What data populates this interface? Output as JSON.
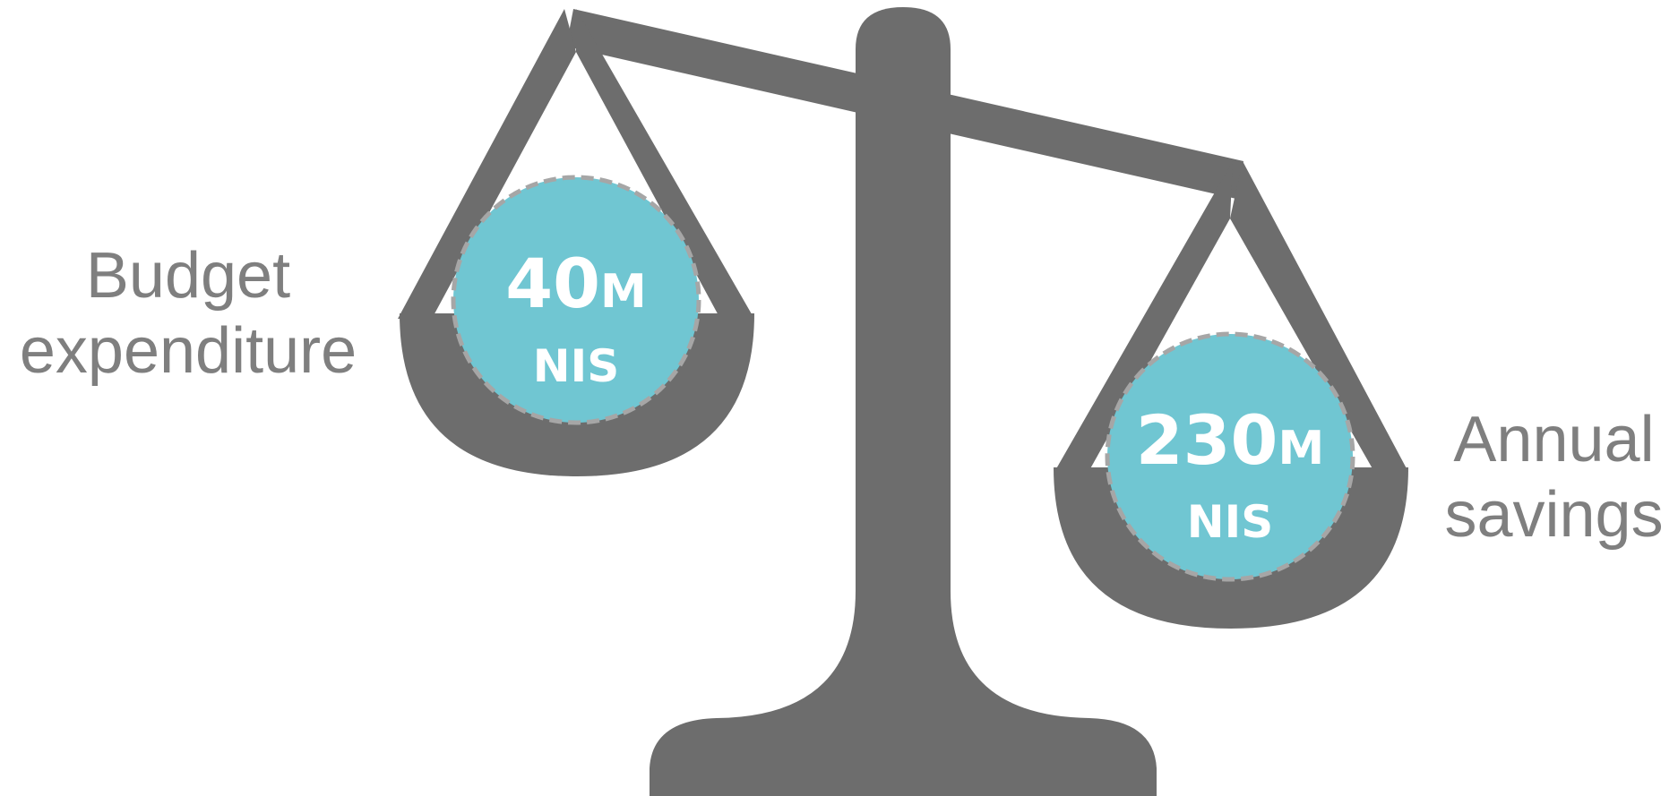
{
  "left_pan": {
    "label_line1": "Budget",
    "label_line2": "expenditure",
    "amount": "40",
    "unit_suffix": "M",
    "currency": "NIS"
  },
  "right_pan": {
    "label_line1": "Annual",
    "label_line2": "savings",
    "amount": "230",
    "unit_suffix": "M",
    "currency": "NIS"
  },
  "colors": {
    "scale": "#6d6d6d",
    "circle_fill": "#70c6d2",
    "circle_dash": "#a6a6a6",
    "value_text": "#ffffff",
    "label_text": "#7f7f7f"
  },
  "icons": {
    "scale": "balance-scale-icon"
  }
}
